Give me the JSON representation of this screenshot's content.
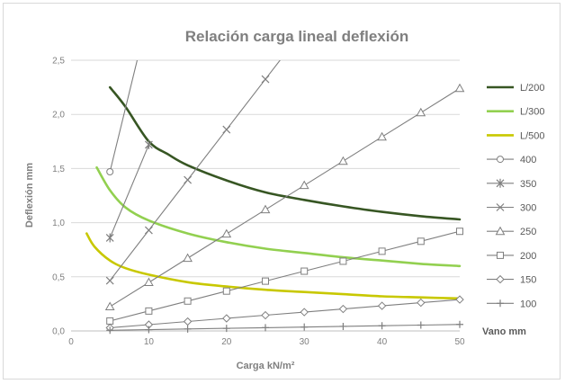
{
  "chart_data": {
    "type": "scatter",
    "title": "Relación carga lineal deflexión",
    "xlabel": "Carga kN/m²",
    "ylabel": "Deflexión mm",
    "xlim": [
      0,
      50
    ],
    "ylim": [
      0,
      2.5
    ],
    "xticks": [
      "0",
      "10",
      "20",
      "30",
      "40",
      "50"
    ],
    "yticks": [
      "0,0",
      "0,5",
      "1,0",
      "1,5",
      "2,0",
      "2,5"
    ],
    "grid": "horizontal",
    "legend_position": "right",
    "legend_title": "Vano mm",
    "limit_series": [
      {
        "name": "L/200",
        "color": "#375623",
        "x": [
          5,
          7,
          10,
          12.5,
          15,
          20,
          25,
          30,
          35,
          40,
          45,
          50
        ],
        "y": [
          2.25,
          2.07,
          1.75,
          1.63,
          1.53,
          1.39,
          1.28,
          1.21,
          1.15,
          1.1,
          1.06,
          1.03
        ]
      },
      {
        "name": "L/300",
        "color": "#92d050",
        "x": [
          3.3,
          5,
          7,
          10,
          15,
          20,
          25,
          30,
          35,
          40,
          45,
          50
        ],
        "y": [
          1.51,
          1.3,
          1.14,
          1.02,
          0.9,
          0.82,
          0.76,
          0.72,
          0.68,
          0.65,
          0.62,
          0.6
        ]
      },
      {
        "name": "L/500",
        "color": "#c8c800",
        "x": [
          2,
          3,
          5,
          7,
          10,
          15,
          20,
          25,
          30,
          35,
          40,
          45,
          50
        ],
        "y": [
          0.9,
          0.78,
          0.65,
          0.58,
          0.52,
          0.45,
          0.41,
          0.38,
          0.36,
          0.34,
          0.32,
          0.31,
          0.3
        ]
      }
    ],
    "span_series": [
      {
        "name": "400",
        "marker": "circle",
        "x": [
          5,
          10
        ],
        "y": [
          1.47,
          2.94
        ]
      },
      {
        "name": "350",
        "marker": "star",
        "x": [
          5,
          10
        ],
        "y": [
          0.86,
          1.72
        ]
      },
      {
        "name": "300",
        "marker": "x",
        "x": [
          5,
          10,
          15,
          20,
          25,
          30
        ],
        "y": [
          0.465,
          0.93,
          1.395,
          1.86,
          2.325,
          2.79
        ]
      },
      {
        "name": "250",
        "marker": "triangle",
        "x": [
          5,
          10,
          15,
          20,
          25,
          30,
          35,
          40,
          45,
          50
        ],
        "y": [
          0.224,
          0.448,
          0.672,
          0.896,
          1.12,
          1.344,
          1.568,
          1.792,
          2.016,
          2.24
        ]
      },
      {
        "name": "200",
        "marker": "square",
        "x": [
          5,
          10,
          15,
          20,
          25,
          30,
          35,
          40,
          45,
          50
        ],
        "y": [
          0.092,
          0.184,
          0.276,
          0.368,
          0.46,
          0.552,
          0.644,
          0.736,
          0.828,
          0.92
        ]
      },
      {
        "name": "150",
        "marker": "diamond",
        "x": [
          5,
          10,
          15,
          20,
          25,
          30,
          35,
          40,
          45,
          50
        ],
        "y": [
          0.029,
          0.058,
          0.087,
          0.116,
          0.145,
          0.174,
          0.203,
          0.232,
          0.261,
          0.29
        ]
      },
      {
        "name": "100",
        "marker": "plus",
        "x": [
          5,
          10,
          15,
          20,
          25,
          30,
          35,
          40,
          45,
          50
        ],
        "y": [
          0.006,
          0.012,
          0.018,
          0.024,
          0.03,
          0.036,
          0.042,
          0.048,
          0.054,
          0.06
        ]
      }
    ]
  }
}
